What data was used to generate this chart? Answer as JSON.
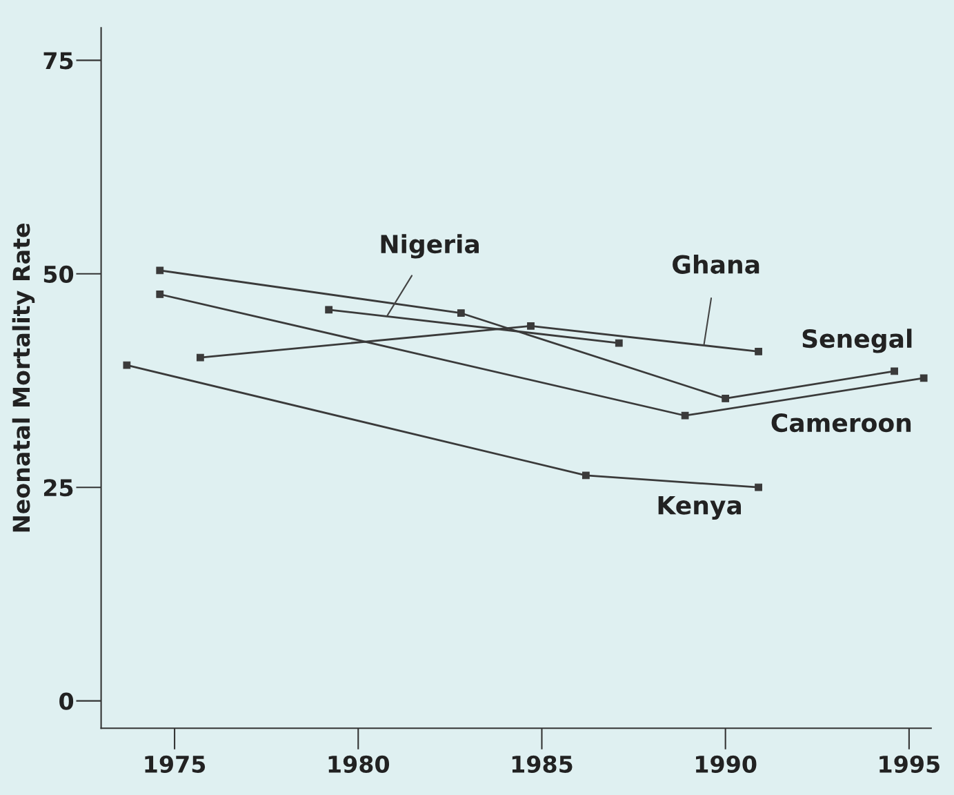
{
  "chart_data": {
    "type": "line",
    "ylabel": "Neonatal Mortality Rate",
    "xlim": [
      1973.0,
      1995.6
    ],
    "ylim": [
      -3.2,
      78.8
    ],
    "xticks": [
      1975,
      1980,
      1985,
      1990,
      1995
    ],
    "yticks": [
      0,
      25,
      50,
      75
    ],
    "marker": "square",
    "line_style": "solid",
    "grid": false,
    "series": [
      {
        "name": "Nigeria",
        "color": "#3a3a3a",
        "x": [
          1979.2,
          1987.1
        ],
        "values": [
          45.8,
          41.9
        ]
      },
      {
        "name": "Ghana",
        "color": "#3a3a3a",
        "x": [
          1975.7,
          1984.7,
          1990.9
        ],
        "values": [
          40.2,
          43.9,
          40.9
        ]
      },
      {
        "name": "Senegal",
        "color": "#3a3a3a",
        "x": [
          1974.6,
          1982.8,
          1990.0,
          1994.6
        ],
        "values": [
          50.4,
          45.4,
          35.4,
          38.6
        ]
      },
      {
        "name": "Cameroon",
        "color": "#3a3a3a",
        "x": [
          1974.6,
          1988.9,
          1995.4
        ],
        "values": [
          47.6,
          33.4,
          37.8
        ]
      },
      {
        "name": "Kenya",
        "color": "#3a3a3a",
        "x": [
          1973.7,
          1986.2,
          1990.9
        ],
        "values": [
          39.3,
          26.4,
          25.0
        ]
      }
    ]
  }
}
